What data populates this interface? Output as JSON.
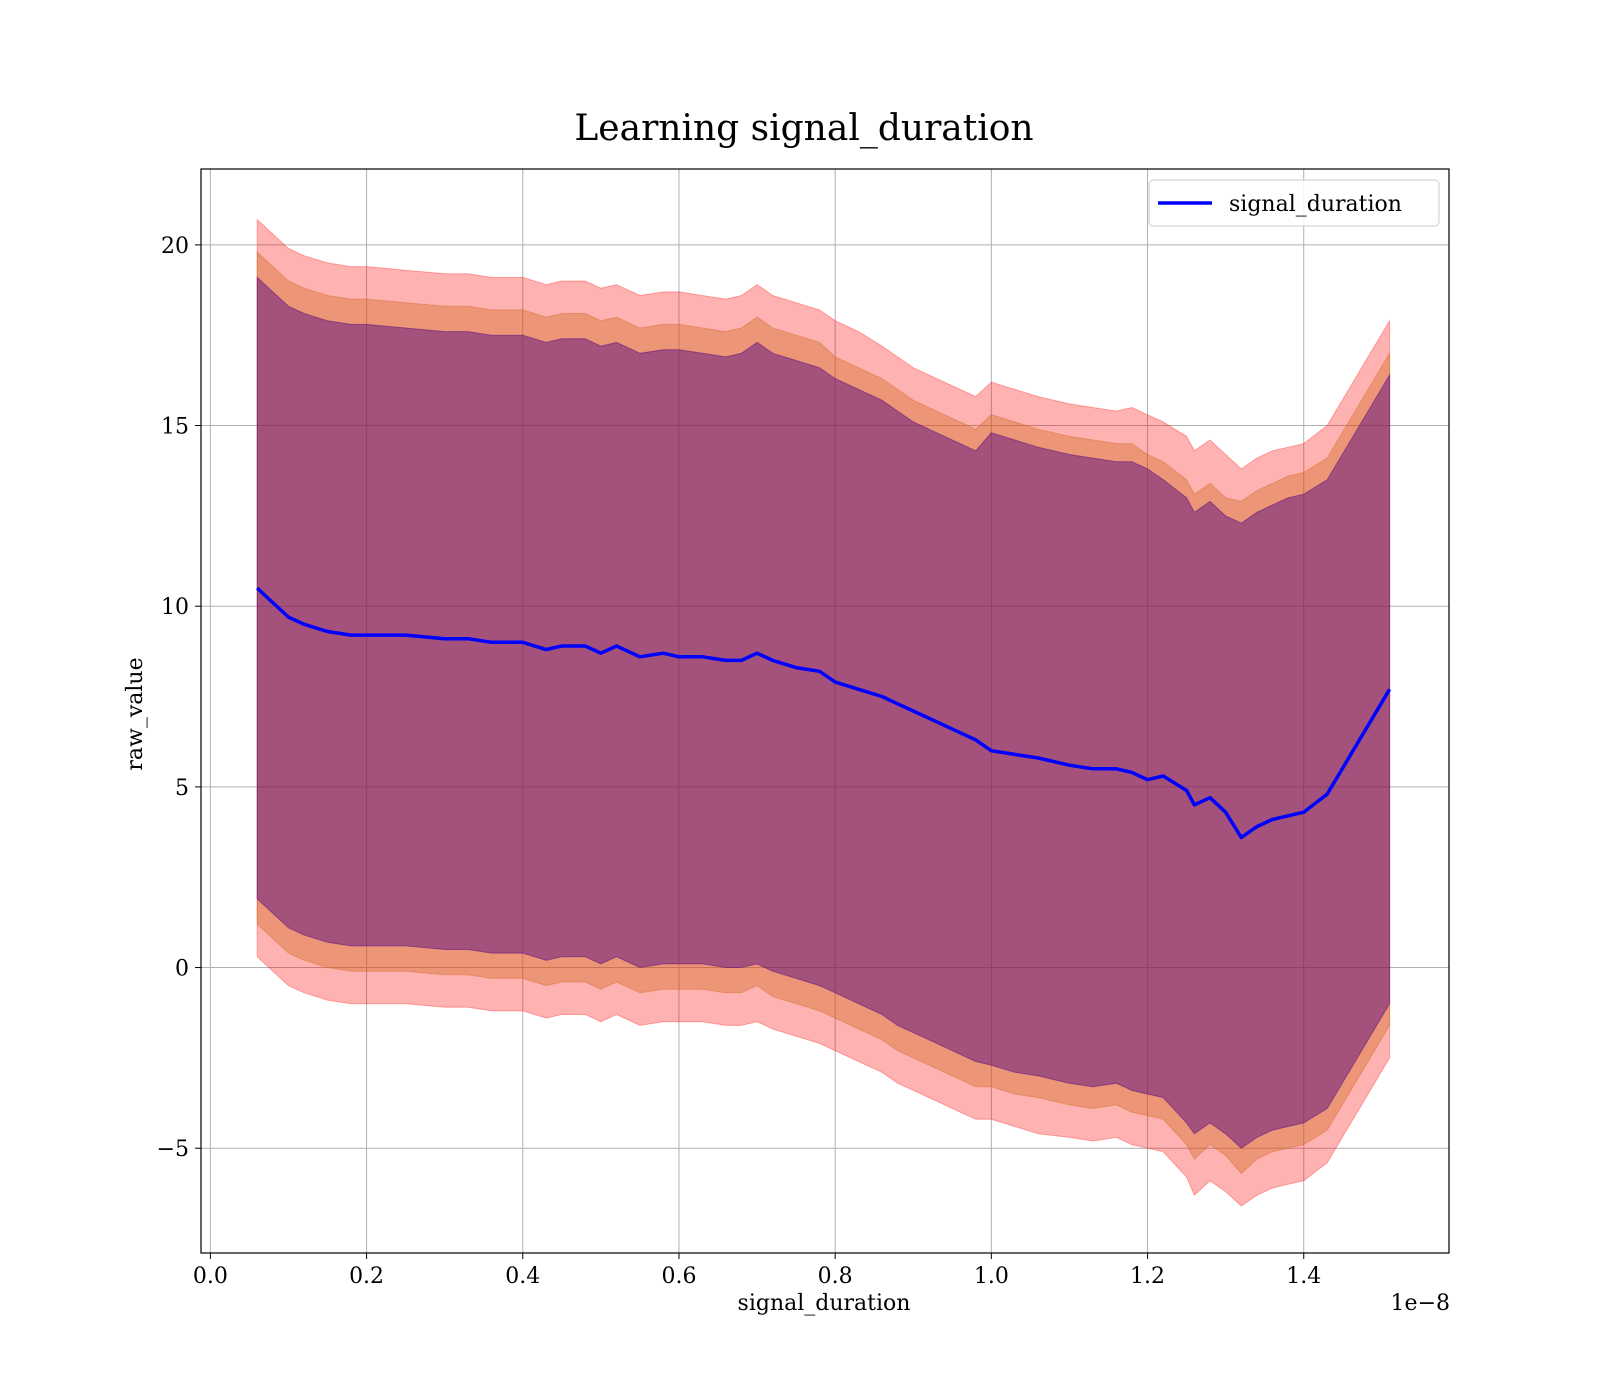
{
  "chart_data": {
    "type": "line",
    "title": "Learning signal_duration",
    "xlabel": "signal_duration",
    "ylabel": "raw_value",
    "x_offset_label": "1e−8",
    "xlim": [
      -0.012,
      1.586
    ],
    "ylim": [
      -7.9,
      22.1
    ],
    "xticks": [
      0.0,
      0.2,
      0.4,
      0.6,
      0.8,
      1.0,
      1.2,
      1.4
    ],
    "xtick_labels": [
      "0.0",
      "0.2",
      "0.4",
      "0.6",
      "0.8",
      "1.0",
      "1.2",
      "1.4"
    ],
    "yticks": [
      -5,
      0,
      5,
      10,
      15,
      20
    ],
    "ytick_labels": [
      "−5",
      "0",
      "5",
      "10",
      "15",
      "20"
    ],
    "grid": true,
    "legend_position": "top-right",
    "colors": {
      "line": "#0000ff",
      "band_outer": "#ff0000",
      "band_middle": "#d2691e",
      "band_inner": "#4b0082",
      "grid": "#b0b0b0"
    },
    "series": [
      {
        "name": "signal_duration",
        "x": [
          0.06,
          0.08,
          0.1,
          0.12,
          0.15,
          0.18,
          0.2,
          0.25,
          0.3,
          0.33,
          0.36,
          0.4,
          0.43,
          0.45,
          0.48,
          0.5,
          0.52,
          0.55,
          0.58,
          0.6,
          0.63,
          0.66,
          0.68,
          0.7,
          0.72,
          0.75,
          0.78,
          0.8,
          0.83,
          0.86,
          0.88,
          0.9,
          0.93,
          0.96,
          0.98,
          1.0,
          1.03,
          1.06,
          1.1,
          1.13,
          1.16,
          1.18,
          1.2,
          1.22,
          1.25,
          1.26,
          1.28,
          1.3,
          1.32,
          1.34,
          1.36,
          1.38,
          1.4,
          1.43,
          1.51
        ],
        "values": [
          10.5,
          10.1,
          9.7,
          9.5,
          9.3,
          9.2,
          9.2,
          9.2,
          9.1,
          9.1,
          9.0,
          9.0,
          8.8,
          8.9,
          8.9,
          8.7,
          8.9,
          8.6,
          8.7,
          8.6,
          8.6,
          8.5,
          8.5,
          8.7,
          8.5,
          8.3,
          8.2,
          7.9,
          7.7,
          7.5,
          7.3,
          7.1,
          6.8,
          6.5,
          6.3,
          6.0,
          5.9,
          5.8,
          5.6,
          5.5,
          5.5,
          5.4,
          5.2,
          5.3,
          4.9,
          4.5,
          4.7,
          4.3,
          3.6,
          3.9,
          4.1,
          4.2,
          4.3,
          4.8,
          7.7
        ]
      }
    ],
    "bands": [
      {
        "x": [
          0.06,
          0.08,
          0.1,
          0.12,
          0.15,
          0.18,
          0.2,
          0.25,
          0.3,
          0.33,
          0.36,
          0.4,
          0.43,
          0.45,
          0.48,
          0.5,
          0.52,
          0.55,
          0.58,
          0.6,
          0.63,
          0.66,
          0.68,
          0.7,
          0.72,
          0.75,
          0.78,
          0.8,
          0.83,
          0.86,
          0.88,
          0.9,
          0.93,
          0.96,
          0.98,
          1.0,
          1.03,
          1.06,
          1.1,
          1.13,
          1.16,
          1.18,
          1.2,
          1.22,
          1.25,
          1.26,
          1.28,
          1.3,
          1.32,
          1.34,
          1.36,
          1.38,
          1.4,
          1.43,
          1.51
        ],
        "upper": [
          20.7,
          20.3,
          19.9,
          19.7,
          19.5,
          19.4,
          19.4,
          19.3,
          19.2,
          19.2,
          19.1,
          19.1,
          18.9,
          19.0,
          19.0,
          18.8,
          18.9,
          18.6,
          18.7,
          18.7,
          18.6,
          18.5,
          18.6,
          18.9,
          18.6,
          18.4,
          18.2,
          17.9,
          17.6,
          17.2,
          16.9,
          16.6,
          16.3,
          16.0,
          15.8,
          16.2,
          16.0,
          15.8,
          15.6,
          15.5,
          15.4,
          15.5,
          15.3,
          15.1,
          14.7,
          14.3,
          14.6,
          14.2,
          13.8,
          14.1,
          14.3,
          14.4,
          14.5,
          15.0,
          17.9
        ],
        "lower": [
          0.3,
          -0.1,
          -0.5,
          -0.7,
          -0.9,
          -1.0,
          -1.0,
          -1.0,
          -1.1,
          -1.1,
          -1.2,
          -1.2,
          -1.4,
          -1.3,
          -1.3,
          -1.5,
          -1.3,
          -1.6,
          -1.5,
          -1.5,
          -1.5,
          -1.6,
          -1.6,
          -1.5,
          -1.7,
          -1.9,
          -2.1,
          -2.3,
          -2.6,
          -2.9,
          -3.2,
          -3.4,
          -3.7,
          -4.0,
          -4.2,
          -4.2,
          -4.4,
          -4.6,
          -4.7,
          -4.8,
          -4.7,
          -4.9,
          -5.0,
          -5.1,
          -5.8,
          -6.3,
          -5.9,
          -6.2,
          -6.6,
          -6.3,
          -6.1,
          -6.0,
          -5.9,
          -5.4,
          -2.5
        ],
        "color": "#ff0000",
        "opacity": 0.3
      },
      {
        "x": [
          0.06,
          0.08,
          0.1,
          0.12,
          0.15,
          0.18,
          0.2,
          0.25,
          0.3,
          0.33,
          0.36,
          0.4,
          0.43,
          0.45,
          0.48,
          0.5,
          0.52,
          0.55,
          0.58,
          0.6,
          0.63,
          0.66,
          0.68,
          0.7,
          0.72,
          0.75,
          0.78,
          0.8,
          0.83,
          0.86,
          0.88,
          0.9,
          0.93,
          0.96,
          0.98,
          1.0,
          1.03,
          1.06,
          1.1,
          1.13,
          1.16,
          1.18,
          1.2,
          1.22,
          1.25,
          1.26,
          1.28,
          1.3,
          1.32,
          1.34,
          1.36,
          1.38,
          1.4,
          1.43,
          1.51
        ],
        "upper": [
          19.8,
          19.4,
          19.0,
          18.8,
          18.6,
          18.5,
          18.5,
          18.4,
          18.3,
          18.3,
          18.2,
          18.2,
          18.0,
          18.1,
          18.1,
          17.9,
          18.0,
          17.7,
          17.8,
          17.8,
          17.7,
          17.6,
          17.7,
          18.0,
          17.7,
          17.5,
          17.3,
          16.9,
          16.6,
          16.3,
          16.0,
          15.7,
          15.4,
          15.1,
          14.9,
          15.3,
          15.1,
          14.9,
          14.7,
          14.6,
          14.5,
          14.5,
          14.2,
          14.0,
          13.5,
          13.1,
          13.4,
          13.0,
          12.9,
          13.2,
          13.4,
          13.6,
          13.7,
          14.1,
          17.0
        ],
        "lower": [
          1.2,
          0.8,
          0.4,
          0.2,
          0.0,
          -0.1,
          -0.1,
          -0.1,
          -0.2,
          -0.2,
          -0.3,
          -0.3,
          -0.5,
          -0.4,
          -0.4,
          -0.6,
          -0.4,
          -0.7,
          -0.6,
          -0.6,
          -0.6,
          -0.7,
          -0.7,
          -0.5,
          -0.8,
          -1.0,
          -1.2,
          -1.4,
          -1.7,
          -2.0,
          -2.3,
          -2.5,
          -2.8,
          -3.1,
          -3.3,
          -3.3,
          -3.5,
          -3.6,
          -3.8,
          -3.9,
          -3.8,
          -4.0,
          -4.1,
          -4.2,
          -4.9,
          -5.3,
          -4.9,
          -5.2,
          -5.7,
          -5.3,
          -5.1,
          -5.0,
          -4.9,
          -4.5,
          -1.6
        ],
        "color": "#d2691e",
        "opacity": 0.4
      },
      {
        "x": [
          0.06,
          0.08,
          0.1,
          0.12,
          0.15,
          0.18,
          0.2,
          0.25,
          0.3,
          0.33,
          0.36,
          0.4,
          0.43,
          0.45,
          0.48,
          0.5,
          0.52,
          0.55,
          0.58,
          0.6,
          0.63,
          0.66,
          0.68,
          0.7,
          0.72,
          0.75,
          0.78,
          0.8,
          0.83,
          0.86,
          0.88,
          0.9,
          0.93,
          0.96,
          0.98,
          1.0,
          1.03,
          1.06,
          1.1,
          1.13,
          1.16,
          1.18,
          1.2,
          1.22,
          1.25,
          1.26,
          1.28,
          1.3,
          1.32,
          1.34,
          1.36,
          1.38,
          1.4,
          1.43,
          1.51
        ],
        "upper": [
          19.1,
          18.7,
          18.3,
          18.1,
          17.9,
          17.8,
          17.8,
          17.7,
          17.6,
          17.6,
          17.5,
          17.5,
          17.3,
          17.4,
          17.4,
          17.2,
          17.3,
          17.0,
          17.1,
          17.1,
          17.0,
          16.9,
          17.0,
          17.3,
          17.0,
          16.8,
          16.6,
          16.3,
          16.0,
          15.7,
          15.4,
          15.1,
          14.8,
          14.5,
          14.3,
          14.8,
          14.6,
          14.4,
          14.2,
          14.1,
          14.0,
          14.0,
          13.8,
          13.5,
          13.0,
          12.6,
          12.9,
          12.5,
          12.3,
          12.6,
          12.8,
          13.0,
          13.1,
          13.5,
          16.4
        ],
        "lower": [
          1.9,
          1.5,
          1.1,
          0.9,
          0.7,
          0.6,
          0.6,
          0.6,
          0.5,
          0.5,
          0.4,
          0.4,
          0.2,
          0.3,
          0.3,
          0.1,
          0.3,
          0.0,
          0.1,
          0.1,
          0.1,
          0.0,
          0.0,
          0.1,
          -0.1,
          -0.3,
          -0.5,
          -0.7,
          -1.0,
          -1.3,
          -1.6,
          -1.8,
          -2.1,
          -2.4,
          -2.6,
          -2.7,
          -2.9,
          -3.0,
          -3.2,
          -3.3,
          -3.2,
          -3.4,
          -3.5,
          -3.6,
          -4.3,
          -4.6,
          -4.3,
          -4.6,
          -5.0,
          -4.7,
          -4.5,
          -4.4,
          -4.3,
          -3.9,
          -1.0
        ],
        "color": "#4b0082",
        "opacity": 0.45
      }
    ]
  }
}
